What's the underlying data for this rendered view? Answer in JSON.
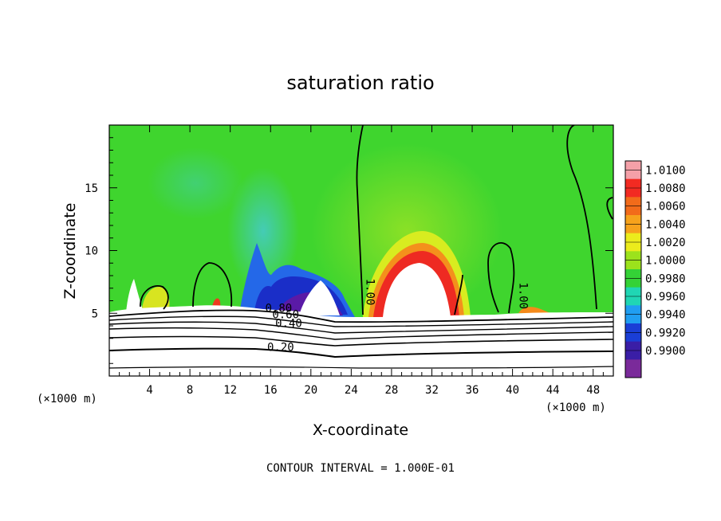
{
  "chart_data": {
    "type": "heatmap",
    "title": "saturation ratio",
    "xlabel": "X-coordinate",
    "ylabel": "Z-coordinate",
    "x_unit": "(×1000 m)",
    "footer": "CONTOUR INTERVAL = 1.000E-01",
    "xlim": [
      0,
      50
    ],
    "ylim": [
      0,
      20
    ],
    "x_ticks": [
      4,
      8,
      12,
      16,
      20,
      24,
      28,
      32,
      36,
      40,
      44,
      48
    ],
    "y_ticks": [
      5,
      10,
      15
    ],
    "colorbar": {
      "levels": [
        "1.0100",
        "1.0080",
        "1.0060",
        "1.0040",
        "1.0020",
        "1.0000",
        "0.9980",
        "0.9960",
        "0.9940",
        "0.9920",
        "0.9900"
      ],
      "colors": [
        "#f4a0a8",
        "#f22a22",
        "#f26b1a",
        "#f6a21c",
        "#ecec1c",
        "#9ce21c",
        "#34d236",
        "#20d6b4",
        "#209ef2",
        "#1a3ed6",
        "#3a1ea6",
        "#7a2a9a"
      ]
    },
    "contour_labels": [
      {
        "text": "1.00",
        "x": 25.5,
        "y": 6.7,
        "rotate": 90
      },
      {
        "text": "1.00",
        "x": 40.7,
        "y": 6.4,
        "rotate": 90
      },
      {
        "text": "0.80",
        "x": 16.8,
        "y": 5.1,
        "rotate": 0
      },
      {
        "text": "0.60",
        "x": 17.5,
        "y": 4.6,
        "rotate": 0
      },
      {
        "text": "0.40",
        "x": 17.8,
        "y": 3.9,
        "rotate": 0
      },
      {
        "text": "0.20",
        "x": 17.0,
        "y": 2.0,
        "rotate": 0
      }
    ],
    "features": {
      "background_value": 1.0001,
      "supersaturated_plume": {
        "x_center": 30,
        "x_range": [
          26,
          34.5
        ],
        "top_z": 9.5,
        "max_value": 1.01
      },
      "subsaturated_region": {
        "x_range": [
          14,
          24
        ],
        "top_z": 10.5,
        "min_value": 0.99
      },
      "layer_base_z": 5.0
    }
  }
}
